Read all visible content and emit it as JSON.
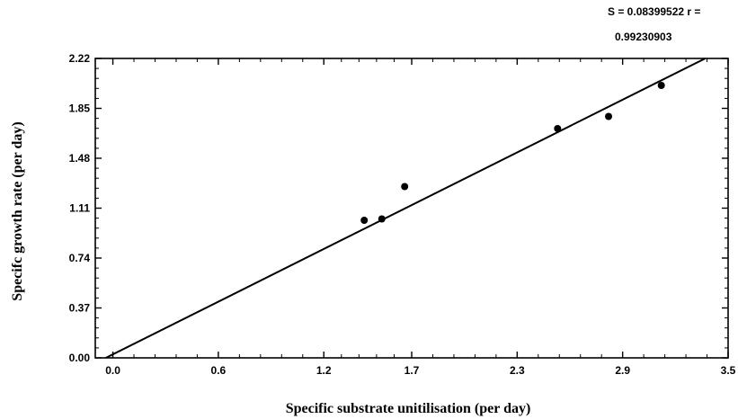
{
  "chart_data": {
    "type": "scatter",
    "xlabel": "Specific substrate unitilisation (per day)",
    "ylabel": "Specifc growth rate (per day)",
    "annotation_line1": "S = 0.08399522  r =",
    "annotation_line2": "0.99230903",
    "xlim": [
      -0.1,
      3.5
    ],
    "ylim": [
      0,
      2.22
    ],
    "x_ticks": [
      0.0,
      0.6,
      1.2,
      1.7,
      2.3,
      2.9,
      3.5
    ],
    "x_tick_labels": [
      "0.0",
      "0.6",
      "1.2",
      "1.7",
      "2.3",
      "2.9",
      "3.5"
    ],
    "y_ticks": [
      0.0,
      0.37,
      0.74,
      1.11,
      1.48,
      1.85,
      2.22
    ],
    "y_tick_labels": [
      "0.00",
      "0.37",
      "0.74",
      "1.11",
      "1.48",
      "1.85",
      "2.22"
    ],
    "points": [
      {
        "x": 1.43,
        "y": 1.02
      },
      {
        "x": 1.53,
        "y": 1.03
      },
      {
        "x": 1.66,
        "y": 1.27
      },
      {
        "x": 2.53,
        "y": 1.7
      },
      {
        "x": 2.82,
        "y": 1.79
      },
      {
        "x": 3.12,
        "y": 2.02
      }
    ],
    "fit_line": {
      "x": [
        -0.04,
        3.37
      ],
      "y": [
        0.0,
        2.22
      ]
    },
    "grid": false,
    "legend": "none"
  }
}
